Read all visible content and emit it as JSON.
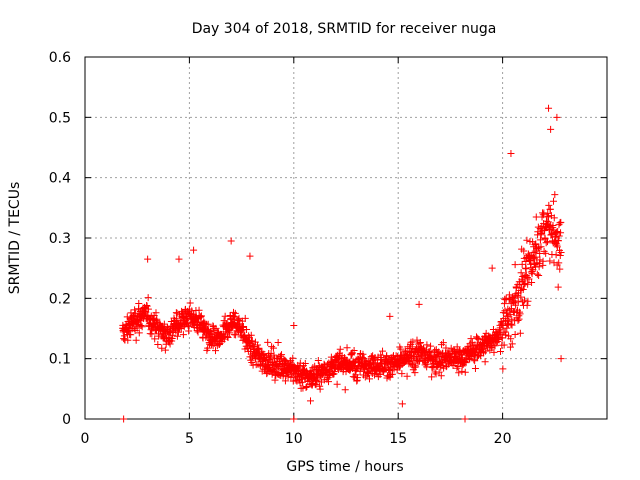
{
  "chart_data": {
    "type": "scatter",
    "title": "Day 304 of 2018, SRMTID for receiver nuga",
    "xlabel": "GPS time / hours",
    "ylabel": "SRMTID / TECUs",
    "xlim": [
      0,
      25
    ],
    "ylim": [
      0,
      0.6
    ],
    "xticks": [
      0,
      5,
      10,
      15,
      20
    ],
    "yticks": [
      0,
      0.1,
      0.2,
      0.3,
      0.4,
      0.5,
      0.6
    ],
    "xtick_labels": [
      "0",
      "5",
      "10",
      "15",
      "20"
    ],
    "ytick_labels": [
      "0",
      "0.1",
      "0.2",
      "0.3",
      "0.4",
      "0.5",
      "0.6"
    ],
    "grid": true,
    "marker": "+",
    "color": "#ff0000",
    "series": [
      {
        "name": "SRMTID",
        "envelope_points": [
          [
            1.8,
            0.14
          ],
          [
            2.0,
            0.15
          ],
          [
            2.3,
            0.16
          ],
          [
            2.6,
            0.17
          ],
          [
            3.0,
            0.17
          ],
          [
            3.5,
            0.15
          ],
          [
            4.0,
            0.14
          ],
          [
            4.5,
            0.16
          ],
          [
            5.0,
            0.17
          ],
          [
            5.5,
            0.16
          ],
          [
            6.0,
            0.13
          ],
          [
            6.5,
            0.13
          ],
          [
            7.0,
            0.16
          ],
          [
            7.5,
            0.15
          ],
          [
            8.0,
            0.11
          ],
          [
            8.5,
            0.1
          ],
          [
            9.0,
            0.09
          ],
          [
            9.5,
            0.09
          ],
          [
            10.0,
            0.08
          ],
          [
            10.5,
            0.07
          ],
          [
            11.0,
            0.07
          ],
          [
            11.5,
            0.08
          ],
          [
            12.0,
            0.09
          ],
          [
            12.5,
            0.09
          ],
          [
            13.0,
            0.09
          ],
          [
            13.5,
            0.09
          ],
          [
            14.0,
            0.09
          ],
          [
            14.5,
            0.09
          ],
          [
            15.0,
            0.09
          ],
          [
            15.5,
            0.1
          ],
          [
            16.0,
            0.11
          ],
          [
            16.5,
            0.1
          ],
          [
            17.0,
            0.1
          ],
          [
            17.5,
            0.1
          ],
          [
            18.0,
            0.1
          ],
          [
            18.5,
            0.11
          ],
          [
            19.0,
            0.12
          ],
          [
            19.5,
            0.13
          ],
          [
            20.0,
            0.15
          ],
          [
            20.5,
            0.18
          ],
          [
            21.0,
            0.23
          ],
          [
            21.5,
            0.27
          ],
          [
            22.0,
            0.31
          ],
          [
            22.3,
            0.32
          ],
          [
            22.6,
            0.3
          ],
          [
            22.8,
            0.28
          ]
        ],
        "outliers": [
          [
            1.85,
            0.0
          ],
          [
            10.0,
            0.0
          ],
          [
            18.2,
            0.0
          ],
          [
            22.2,
            0.515
          ],
          [
            22.6,
            0.5
          ],
          [
            20.4,
            0.44
          ],
          [
            22.3,
            0.48
          ],
          [
            7.0,
            0.295
          ],
          [
            5.2,
            0.28
          ],
          [
            3.0,
            0.265
          ],
          [
            4.5,
            0.265
          ],
          [
            7.9,
            0.27
          ],
          [
            10.0,
            0.155
          ],
          [
            14.6,
            0.17
          ],
          [
            16.0,
            0.19
          ],
          [
            19.5,
            0.25
          ],
          [
            22.8,
            0.1
          ],
          [
            20.6,
            0.14
          ],
          [
            10.8,
            0.03
          ],
          [
            15.2,
            0.025
          ]
        ]
      }
    ]
  }
}
